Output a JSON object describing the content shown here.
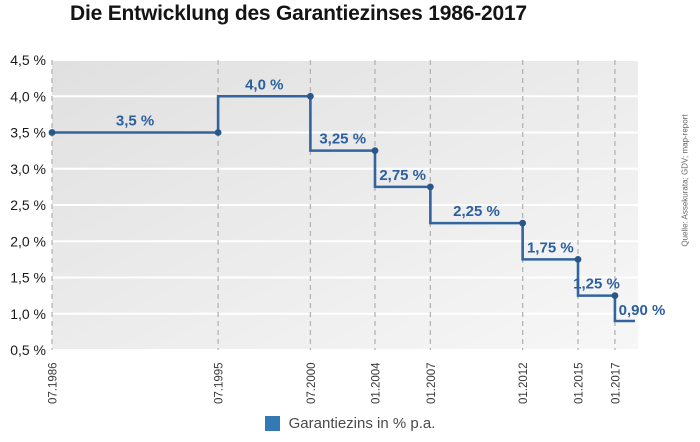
{
  "title": "Die Entwicklung des Garantiezinses 1986-2017",
  "source_note": "Quelle: Assekurata; GDV; map-report",
  "legend": {
    "label": "Garantiezins in % p.a."
  },
  "colors": {
    "line": "#32649e",
    "point": "#2b5688",
    "value_label": "#2b5f9e",
    "legend_swatch": "#3478b4",
    "grid_dash": "#b4b4b4",
    "grid_white": "#ffffff",
    "plot_bg_from": "#e0e0e0",
    "plot_bg_to": "#f7f7f7",
    "y_tick_text": "#1a1a1a",
    "x_tick_text": "#3a3a3a"
  },
  "chart_data": {
    "type": "line",
    "subtype": "step",
    "title": "Die Entwicklung des Garantiezinses 1986-2017",
    "series_name": "Garantiezins in % p.a.",
    "unit": "%",
    "grid": true,
    "legend_position": "bottom",
    "xlim": [
      1986.5,
      2018.25
    ],
    "ylim": [
      0.5,
      4.5
    ],
    "y_ticks": [
      {
        "label": "4,5 %",
        "v": 4.5
      },
      {
        "label": "4,0 %",
        "v": 4.0
      },
      {
        "label": "3,5 %",
        "v": 3.5
      },
      {
        "label": "3,0 %",
        "v": 3.0
      },
      {
        "label": "2,5 %",
        "v": 2.5
      },
      {
        "label": "2,0 %",
        "v": 2.0
      },
      {
        "label": "1,5 %",
        "v": 1.5
      },
      {
        "label": "1,0 %",
        "v": 1.0
      },
      {
        "label": "0,5 %",
        "v": 0.5
      }
    ],
    "x_ticks": [
      {
        "label": "07.1986",
        "t": 1986.5
      },
      {
        "label": "07.1995",
        "t": 1995.5
      },
      {
        "label": "07.2000",
        "t": 2000.5
      },
      {
        "label": "01.2004",
        "t": 2004.0
      },
      {
        "label": "01.2007",
        "t": 2007.0
      },
      {
        "label": "01.2012",
        "t": 2012.0
      },
      {
        "label": "01.2015",
        "t": 2015.0
      },
      {
        "label": "01.2017",
        "t": 2017.0
      }
    ],
    "steps": [
      {
        "from": "07.1986",
        "t": 1986.5,
        "value": 3.5,
        "label": "3,5 %"
      },
      {
        "from": "07.1995",
        "t": 1995.5,
        "value": 4.0,
        "label": "4,0 %"
      },
      {
        "from": "07.2000",
        "t": 2000.5,
        "value": 3.25,
        "label": "3,25 %"
      },
      {
        "from": "01.2004",
        "t": 2004.0,
        "value": 2.75,
        "label": "2,75 %"
      },
      {
        "from": "01.2007",
        "t": 2007.0,
        "value": 2.25,
        "label": "2,25 %"
      },
      {
        "from": "01.2012",
        "t": 2012.0,
        "value": 1.75,
        "label": "1,75 %"
      },
      {
        "from": "01.2015",
        "t": 2015.0,
        "value": 1.25,
        "label": "1,25 %"
      },
      {
        "from": "01.2017",
        "t": 2017.0,
        "value": 0.9,
        "label": "0,90 %"
      }
    ]
  }
}
